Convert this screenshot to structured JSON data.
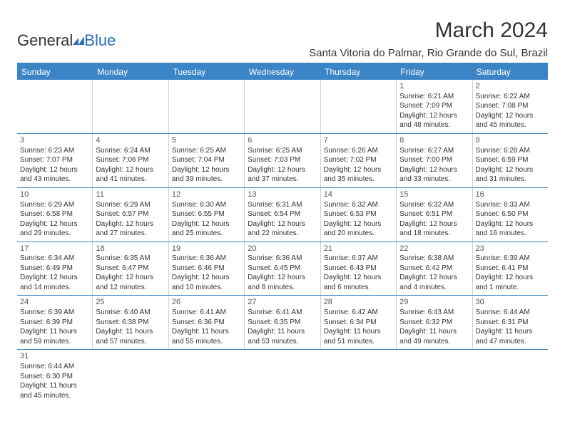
{
  "logo": {
    "text1": "General",
    "text2": "Blue"
  },
  "title": "March 2024",
  "location": "Santa Vitoria do Palmar, Rio Grande do Sul, Brazil",
  "colors": {
    "header_bg": "#3b85c6",
    "header_text": "#ffffff",
    "text": "#333333",
    "row_border": "#3b85c6",
    "cell_border": "#d0d0d0",
    "logo_blue": "#2a6fb5"
  },
  "weekdays": [
    "Sunday",
    "Monday",
    "Tuesday",
    "Wednesday",
    "Thursday",
    "Friday",
    "Saturday"
  ],
  "weeks": [
    [
      null,
      null,
      null,
      null,
      null,
      {
        "n": "1",
        "sr": "6:21 AM",
        "ss": "7:09 PM",
        "dh": "12",
        "dm": "48"
      },
      {
        "n": "2",
        "sr": "6:22 AM",
        "ss": "7:08 PM",
        "dh": "12",
        "dm": "45"
      }
    ],
    [
      {
        "n": "3",
        "sr": "6:23 AM",
        "ss": "7:07 PM",
        "dh": "12",
        "dm": "43"
      },
      {
        "n": "4",
        "sr": "6:24 AM",
        "ss": "7:06 PM",
        "dh": "12",
        "dm": "41"
      },
      {
        "n": "5",
        "sr": "6:25 AM",
        "ss": "7:04 PM",
        "dh": "12",
        "dm": "39"
      },
      {
        "n": "6",
        "sr": "6:25 AM",
        "ss": "7:03 PM",
        "dh": "12",
        "dm": "37"
      },
      {
        "n": "7",
        "sr": "6:26 AM",
        "ss": "7:02 PM",
        "dh": "12",
        "dm": "35"
      },
      {
        "n": "8",
        "sr": "6:27 AM",
        "ss": "7:00 PM",
        "dh": "12",
        "dm": "33"
      },
      {
        "n": "9",
        "sr": "6:28 AM",
        "ss": "6:59 PM",
        "dh": "12",
        "dm": "31"
      }
    ],
    [
      {
        "n": "10",
        "sr": "6:29 AM",
        "ss": "6:58 PM",
        "dh": "12",
        "dm": "29"
      },
      {
        "n": "11",
        "sr": "6:29 AM",
        "ss": "6:57 PM",
        "dh": "12",
        "dm": "27"
      },
      {
        "n": "12",
        "sr": "6:30 AM",
        "ss": "6:55 PM",
        "dh": "12",
        "dm": "25"
      },
      {
        "n": "13",
        "sr": "6:31 AM",
        "ss": "6:54 PM",
        "dh": "12",
        "dm": "22"
      },
      {
        "n": "14",
        "sr": "6:32 AM",
        "ss": "6:53 PM",
        "dh": "12",
        "dm": "20"
      },
      {
        "n": "15",
        "sr": "6:32 AM",
        "ss": "6:51 PM",
        "dh": "12",
        "dm": "18"
      },
      {
        "n": "16",
        "sr": "6:33 AM",
        "ss": "6:50 PM",
        "dh": "12",
        "dm": "16"
      }
    ],
    [
      {
        "n": "17",
        "sr": "6:34 AM",
        "ss": "6:49 PM",
        "dh": "12",
        "dm": "14"
      },
      {
        "n": "18",
        "sr": "6:35 AM",
        "ss": "6:47 PM",
        "dh": "12",
        "dm": "12"
      },
      {
        "n": "19",
        "sr": "6:36 AM",
        "ss": "6:46 PM",
        "dh": "12",
        "dm": "10"
      },
      {
        "n": "20",
        "sr": "6:36 AM",
        "ss": "6:45 PM",
        "dh": "12",
        "dm": "8"
      },
      {
        "n": "21",
        "sr": "6:37 AM",
        "ss": "6:43 PM",
        "dh": "12",
        "dm": "6"
      },
      {
        "n": "22",
        "sr": "6:38 AM",
        "ss": "6:42 PM",
        "dh": "12",
        "dm": "4"
      },
      {
        "n": "23",
        "sr": "6:39 AM",
        "ss": "6:41 PM",
        "dh": "12",
        "dm": "1"
      }
    ],
    [
      {
        "n": "24",
        "sr": "6:39 AM",
        "ss": "6:39 PM",
        "dh": "11",
        "dm": "59"
      },
      {
        "n": "25",
        "sr": "6:40 AM",
        "ss": "6:38 PM",
        "dh": "11",
        "dm": "57"
      },
      {
        "n": "26",
        "sr": "6:41 AM",
        "ss": "6:36 PM",
        "dh": "11",
        "dm": "55"
      },
      {
        "n": "27",
        "sr": "6:41 AM",
        "ss": "6:35 PM",
        "dh": "11",
        "dm": "53"
      },
      {
        "n": "28",
        "sr": "6:42 AM",
        "ss": "6:34 PM",
        "dh": "11",
        "dm": "51"
      },
      {
        "n": "29",
        "sr": "6:43 AM",
        "ss": "6:32 PM",
        "dh": "11",
        "dm": "49"
      },
      {
        "n": "30",
        "sr": "6:44 AM",
        "ss": "6:31 PM",
        "dh": "11",
        "dm": "47"
      }
    ],
    [
      {
        "n": "31",
        "sr": "6:44 AM",
        "ss": "6:30 PM",
        "dh": "11",
        "dm": "45"
      },
      null,
      null,
      null,
      null,
      null,
      null
    ]
  ],
  "labels": {
    "sunrise": "Sunrise:",
    "sunset": "Sunset:",
    "daylight": "Daylight:",
    "hours": "hours",
    "and": "and",
    "minutes_one": "minute.",
    "minutes": "minutes."
  }
}
